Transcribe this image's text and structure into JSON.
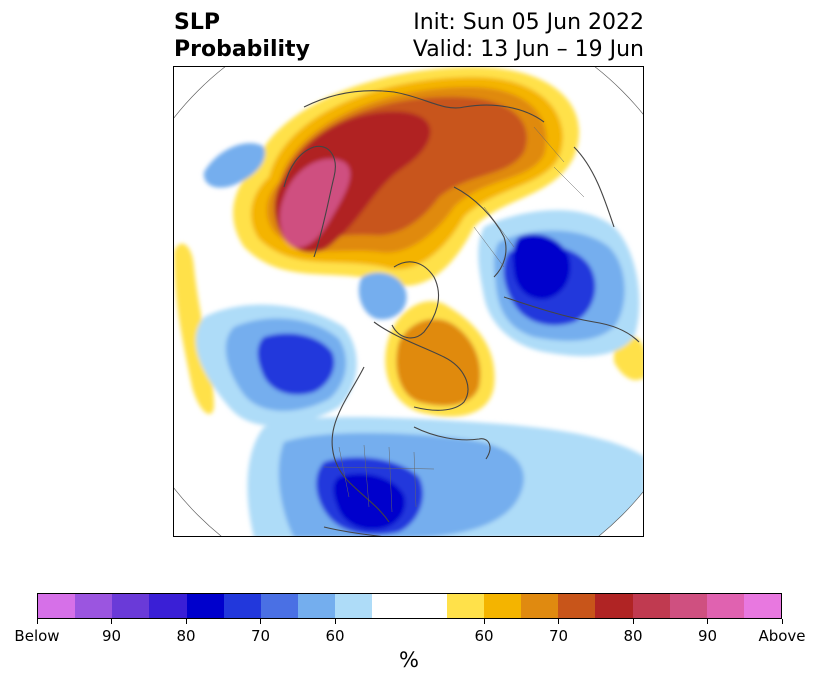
{
  "title": {
    "left_line1": "SLP",
    "left_line2": "Probability",
    "right_line1": "Init: Sun 05 Jun 2022",
    "right_line2": "Valid: 13 Jun – 19 Jun"
  },
  "map": {
    "projection": "polar-stereographic-north",
    "field": "SLP probability"
  },
  "colorbar": {
    "colors": [
      "#d670e8",
      "#9b55e0",
      "#6a3ad8",
      "#3a1fd6",
      "#0000cc",
      "#2238dc",
      "#4a70e4",
      "#74aeee",
      "#aedcf8",
      "#ffffff",
      "#ffffff",
      "#ffe14a",
      "#f4b400",
      "#e08a10",
      "#c8551a",
      "#b02424",
      "#c03a50",
      "#cf5080",
      "#e062b0",
      "#e878e0"
    ],
    "labels": [
      "Below",
      "90",
      "80",
      "70",
      "60",
      "60",
      "70",
      "80",
      "90",
      "Above"
    ],
    "unit": "%"
  }
}
